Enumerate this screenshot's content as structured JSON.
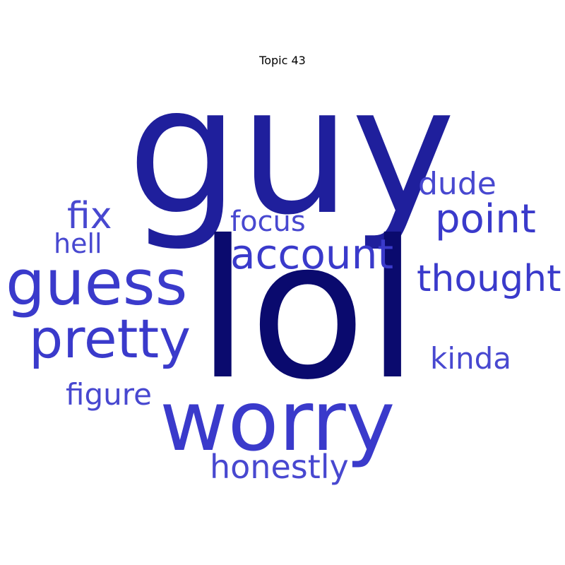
{
  "title": "Topic 43",
  "colors": {
    "darkest": "#0a0a6e",
    "dark": "#1f1f9c",
    "medium": "#3a3acb",
    "light": "#4848d0"
  },
  "words": {
    "lol": "lol",
    "guy": "guy",
    "worry": "worry",
    "guess": "guess",
    "pretty": "pretty",
    "account": "account",
    "thought": "thought",
    "point": "point",
    "honestly": "honestly",
    "fix": "fix",
    "figure": "figure",
    "dude": "dude",
    "kinda": "kinda",
    "focus": "focus",
    "hell": "hell"
  }
}
